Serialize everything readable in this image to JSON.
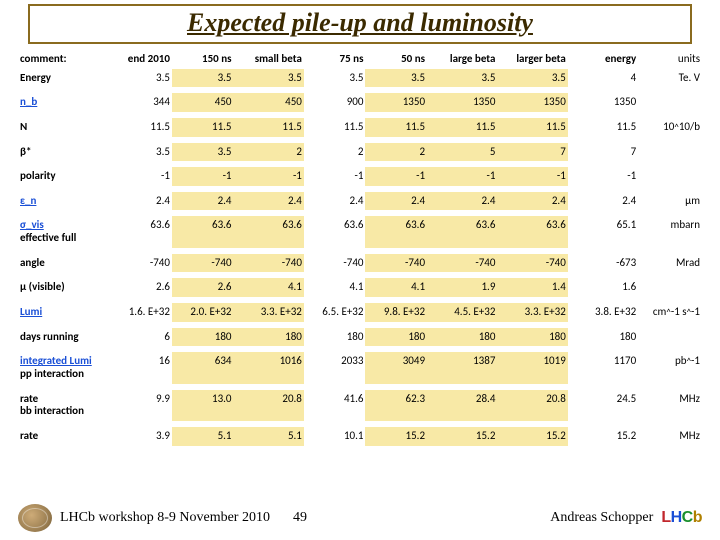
{
  "title": "Expected pile-up and luminosity",
  "columns": [
    "comment:",
    "end 2010",
    "150 ns",
    "small beta",
    "75 ns",
    "50 ns",
    "large beta",
    "larger beta",
    "energy",
    "units"
  ],
  "highlight_cols": [
    2,
    3,
    5,
    6,
    7
  ],
  "rows": [
    {
      "label": "Energy",
      "vals": [
        "3.5",
        "3.5",
        "3.5",
        "3.5",
        "3.5",
        "3.5",
        "3.5",
        "4"
      ],
      "unit": "Te. V",
      "link": false
    },
    {
      "label": "n_b",
      "vals": [
        "344",
        "450",
        "450",
        "900",
        "1350",
        "1350",
        "1350",
        "1350"
      ],
      "unit": "",
      "link": true
    },
    {
      "label": "N",
      "vals": [
        "11.5",
        "11.5",
        "11.5",
        "11.5",
        "11.5",
        "11.5",
        "11.5",
        "11.5"
      ],
      "unit": "10^10/b",
      "link": false,
      "unit_html": "10<span class='sub'>^</span>10/b"
    },
    {
      "label": "β*",
      "vals": [
        "3.5",
        "3.5",
        "2",
        "2",
        "2",
        "5",
        "7",
        "7"
      ],
      "unit": "",
      "link": false
    },
    {
      "label": "polarity",
      "vals": [
        "-1",
        "-1",
        "-1",
        "-1",
        "-1",
        "-1",
        "-1",
        "-1"
      ],
      "unit": "",
      "link": false
    },
    {
      "label": "ε_n",
      "vals": [
        "2.4",
        "2.4",
        "2.4",
        "2.4",
        "2.4",
        "2.4",
        "2.4",
        "2.4"
      ],
      "unit": "µm",
      "link": true
    },
    {
      "label": "σ_vis",
      "vals": [
        "63.6",
        "63.6",
        "63.6",
        "63.6",
        "63.6",
        "63.6",
        "63.6",
        "65.1"
      ],
      "unit": "mbarn",
      "link": true,
      "two_line_label": "effective full"
    },
    {
      "label": "angle",
      "vals": [
        "-740",
        "-740",
        "-740",
        "-740",
        "-740",
        "-740",
        "-740",
        "-673"
      ],
      "unit": "Mrad",
      "link": false
    },
    {
      "label": "µ (visible)",
      "vals": [
        "2.6",
        "2.6",
        "4.1",
        "4.1",
        "4.1",
        "1.9",
        "1.4",
        "1.6"
      ],
      "unit": "",
      "link": false
    },
    {
      "label": "Lumi",
      "vals": [
        "1.6. E+32",
        "2.0. E+32",
        "3.3. E+32",
        "6.5. E+32",
        "9.8. E+32",
        "4.5. E+32",
        "3.3. E+32",
        "3.8. E+32"
      ],
      "unit": "cm^-1 s^-1",
      "link": true,
      "unit_html": "cm<span class='sub'>^</span>-1 s<span class='sub'>^</span>-1"
    },
    {
      "label": "days running",
      "vals": [
        "6",
        "180",
        "180",
        "180",
        "180",
        "180",
        "180",
        "180"
      ],
      "unit": "",
      "link": false
    },
    {
      "label": "integrated Lumi",
      "vals": [
        "16",
        "634",
        "1016",
        "2033",
        "3049",
        "1387",
        "1019",
        "1170"
      ],
      "unit": "pb^-1",
      "link": true,
      "two_line_label": "pp interaction",
      "unit_html": "pb<span class='sub'>^</span>-1"
    },
    {
      "label": "rate",
      "vals": [
        "9.9",
        "13.0",
        "20.8",
        "41.6",
        "62.3",
        "28.4",
        "20.8",
        "24.5"
      ],
      "unit": "MHz",
      "link": false,
      "two_line_label": "bb interaction"
    },
    {
      "label": "rate",
      "vals": [
        "3.9",
        "5.1",
        "5.1",
        "10.1",
        "15.2",
        "15.2",
        "15.2",
        "15.2"
      ],
      "unit": "MHz",
      "link": false
    }
  ],
  "footer": {
    "left": "LHCb workshop 8-9 November 2010",
    "page": "49",
    "right": "Andreas Schopper"
  },
  "colors": {
    "title_border": "#8a6b1f",
    "title_text": "#3b2a00",
    "link": "#1a4fd6",
    "highlight": "#f8e9a6"
  }
}
